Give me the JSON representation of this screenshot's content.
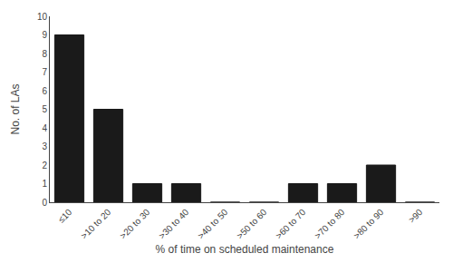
{
  "chart_data": {
    "type": "bar",
    "categories": [
      "≤10",
      ">10 to 20",
      ">20 to 30",
      ">30 to 40",
      ">40 to 50",
      ">50 to 60",
      ">60 to 70",
      ">70 to 80",
      ">80 to 90",
      ">90"
    ],
    "values": [
      9,
      5,
      1,
      1,
      0,
      0,
      1,
      1,
      2,
      0
    ],
    "color": "#1a1a1a",
    "xlabel": "% of time on scheduled maintenance",
    "ylabel": "No. of LAs",
    "ylim": [
      0,
      10
    ],
    "yticks": [
      0,
      1,
      2,
      3,
      4,
      5,
      6,
      7,
      8,
      9,
      10
    ],
    "grid": false
  }
}
